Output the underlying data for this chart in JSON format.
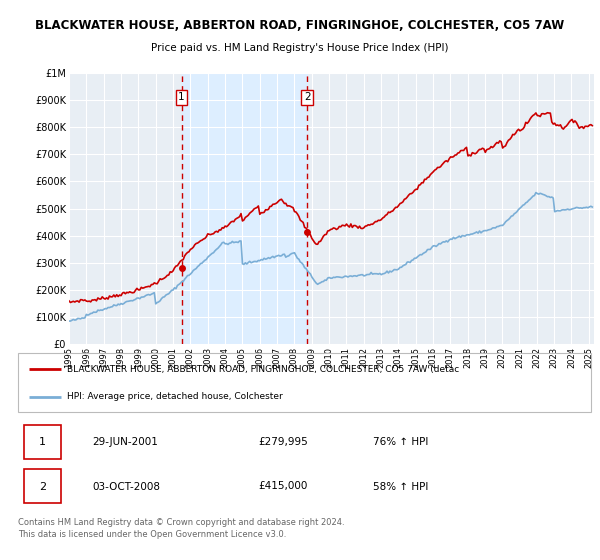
{
  "title": "BLACKWATER HOUSE, ABBERTON ROAD, FINGRINGHOE, COLCHESTER, CO5 7AW",
  "subtitle": "Price paid vs. HM Land Registry's House Price Index (HPI)",
  "legend_line1": "BLACKWATER HOUSE, ABBERTON ROAD, FINGRINGHOE, COLCHESTER, CO5 7AW (detac",
  "legend_line2": "HPI: Average price, detached house, Colchester",
  "footer": "Contains HM Land Registry data © Crown copyright and database right 2024.\nThis data is licensed under the Open Government Licence v3.0.",
  "sale1_label": "1",
  "sale1_date": "29-JUN-2001",
  "sale1_price": "£279,995",
  "sale1_hpi": "76% ↑ HPI",
  "sale2_label": "2",
  "sale2_date": "03-OCT-2008",
  "sale2_price": "£415,000",
  "sale2_hpi": "58% ↑ HPI",
  "hpi_color": "#7aaed6",
  "price_color": "#cc0000",
  "vline_color": "#cc0000",
  "shade_color": "#ddeeff",
  "bg_chart": "#e8eef4",
  "grid_color": "#ffffff",
  "ylim": [
    0,
    1000000
  ],
  "yticks": [
    0,
    100000,
    200000,
    300000,
    400000,
    500000,
    600000,
    700000,
    800000,
    900000,
    1000000
  ],
  "ytick_labels": [
    "£0",
    "£100K",
    "£200K",
    "£300K",
    "£400K",
    "£500K",
    "£600K",
    "£700K",
    "£800K",
    "£900K",
    "£1M"
  ],
  "sale1_x": 2001.496,
  "sale2_x": 2008.749,
  "sale1_y": 279995,
  "sale2_y": 415000,
  "xlim_left": 1995.0,
  "xlim_right": 2025.3
}
